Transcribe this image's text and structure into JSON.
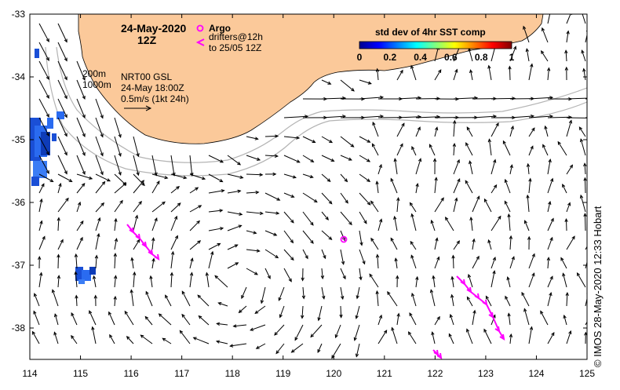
{
  "map": {
    "date": "24-May-2020",
    "time": "12Z",
    "argo_label": "Argo",
    "drifters_line1": "drifters@12h",
    "drifters_line2": "to 25/05 12Z",
    "legend_200m": "200m",
    "legend_1000m": "1000m",
    "product_line1": "NRT00 GSL",
    "product_line2": "24-May 18:00Z",
    "product_line3": "0.5m/s (1kt 24h)",
    "colorbar_title": "std dev of 4hr SST comp",
    "colorbar_ticks": [
      "0",
      "0.2",
      "0.4",
      "0.6",
      "0.8",
      "1"
    ],
    "x_ticks": [
      "114",
      "115",
      "116",
      "117",
      "118",
      "119",
      "120",
      "121",
      "122",
      "123",
      "124",
      "125"
    ],
    "y_ticks": [
      "-33",
      "-34",
      "-35",
      "-36",
      "-37",
      "-38"
    ],
    "copyright": "© IMOS 28-May-2020 12:33 Hobart",
    "colors": {
      "land": "#fbc99a",
      "argo": "#ff00ff",
      "drifter": "#ff00ff",
      "contour": "#b4b4b4"
    }
  }
}
